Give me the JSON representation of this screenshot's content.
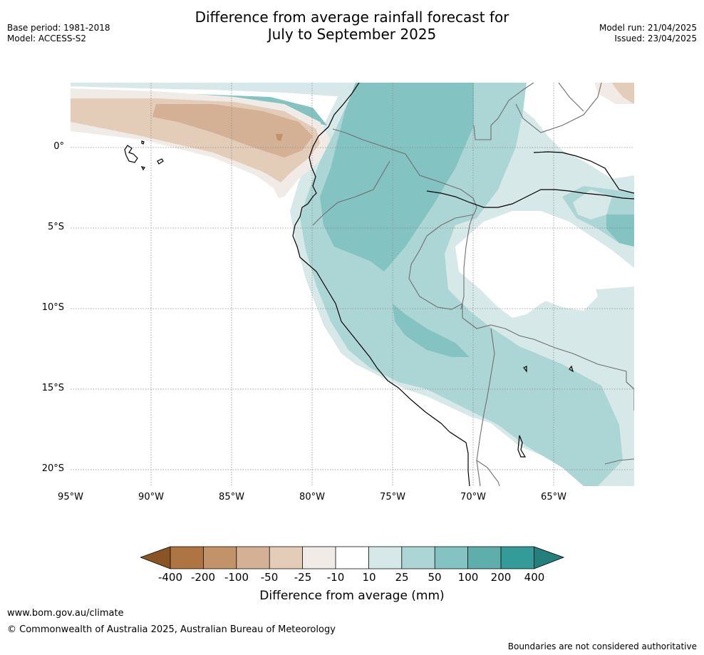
{
  "header": {
    "title_line1": "Difference from average rainfall forecast for",
    "title_line2": "July to September 2025",
    "base_period": "Base period: 1981-2018",
    "model": "Model: ACCESS-S2",
    "model_run": "Model run: 21/04/2025",
    "issued": "Issued: 23/04/2025"
  },
  "map": {
    "lat_labels": [
      "0°",
      "5°S",
      "10°S",
      "15°S",
      "20°S"
    ],
    "lon_labels": [
      "95°W",
      "90°W",
      "85°W",
      "80°W",
      "75°W",
      "70°W",
      "65°W"
    ],
    "colors": {
      "dry_400": "#8a5424",
      "dry_200": "#ae7441",
      "dry_100": "#c29268",
      "dry_50": "#d4b094",
      "dry_25": "#e3cdb9",
      "dry_10": "#f0ebe7",
      "neutral": "#ffffff",
      "wet_10": "#d6e8e7",
      "wet_25": "#acd6d5",
      "wet_50": "#83c3c1",
      "wet_100": "#5eaeab",
      "wet_200": "#349c98",
      "wet_400": "#23807c",
      "coast": "#000000",
      "border": "#6f6f6f",
      "grid": "#8a8a8a"
    }
  },
  "colorbar": {
    "labels": [
      "-400",
      "-200",
      "-100",
      "-50",
      "-25",
      "-10",
      "10",
      "25",
      "50",
      "100",
      "200",
      "400"
    ],
    "title": "Difference from average (mm)"
  },
  "footer": {
    "site": "www.bom.gov.au/climate",
    "copyright": "© Commonwealth of Australia 2025, Australian Bureau of Meteorology",
    "disclaimer": "Boundaries are not considered authoritative"
  }
}
